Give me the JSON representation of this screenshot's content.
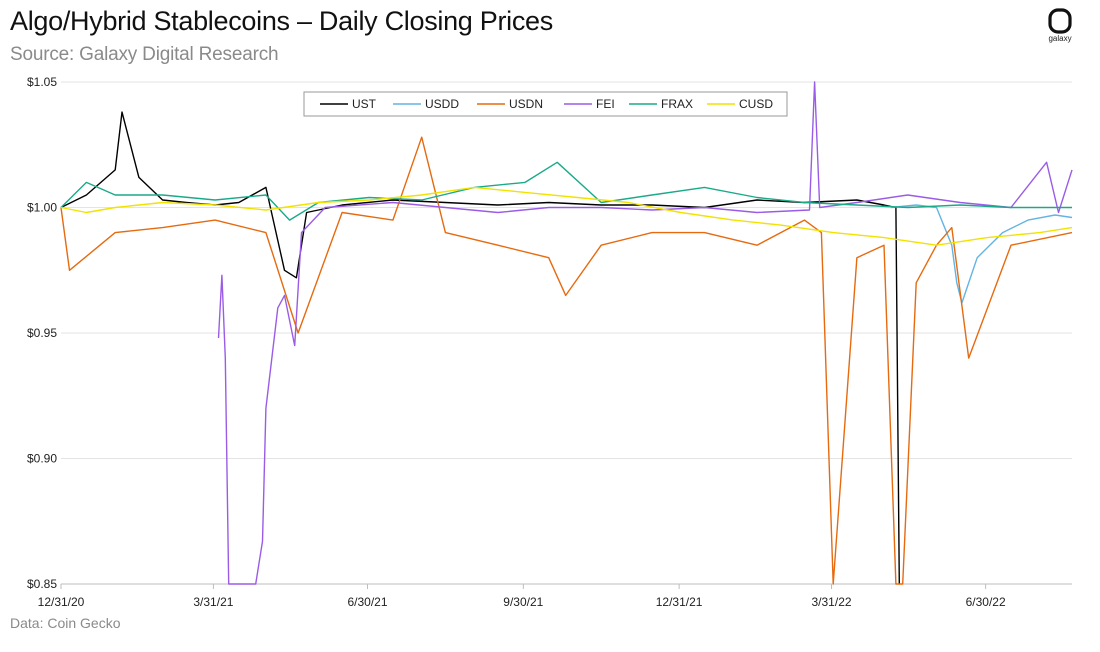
{
  "header": {
    "title": "Algo/Hybrid Stablecoins – Daily Closing Prices",
    "subtitle": "Source: Galaxy Digital Research",
    "logo_text": "galaxy"
  },
  "footer": {
    "note": "Data: Coin Gecko"
  },
  "chart_data": {
    "type": "line",
    "title": "Algo/Hybrid Stablecoins – Daily Closing Prices",
    "xlabel": "",
    "ylabel": "",
    "x_range": [
      "2020-12-31",
      "2022-08-20"
    ],
    "ylim": [
      0.85,
      1.05
    ],
    "y_ticks": [
      1.05,
      1.0,
      0.95,
      0.9,
      0.85
    ],
    "y_tick_labels": [
      "$1.05",
      "$1.00",
      "$0.95",
      "$0.90",
      "$0.85"
    ],
    "x_ticks": [
      "2020-12-31",
      "2021-03-31",
      "2021-06-30",
      "2021-09-30",
      "2021-12-31",
      "2022-03-31",
      "2022-06-30"
    ],
    "x_tick_labels": [
      "12/31/20",
      "3/31/21",
      "6/30/21",
      "9/30/21",
      "12/31/21",
      "3/31/22",
      "6/30/22"
    ],
    "grid": "horizontal",
    "legend_position": "top-center",
    "series": [
      {
        "name": "UST",
        "color": "#000000",
        "x": [
          "2020-12-31",
          "2021-01-15",
          "2021-02-01",
          "2021-02-05",
          "2021-02-15",
          "2021-03-01",
          "2021-03-15",
          "2021-04-01",
          "2021-04-15",
          "2021-05-01",
          "2021-05-12",
          "2021-05-19",
          "2021-05-25",
          "2021-06-15",
          "2021-07-15",
          "2021-08-15",
          "2021-09-15",
          "2021-10-15",
          "2021-11-15",
          "2021-12-15",
          "2022-01-15",
          "2022-02-15",
          "2022-03-15",
          "2022-04-15",
          "2022-05-01",
          "2022-05-08",
          "2022-05-10"
        ],
        "values": [
          1.0,
          1.005,
          1.015,
          1.038,
          1.012,
          1.003,
          1.002,
          1.001,
          1.002,
          1.008,
          0.975,
          0.972,
          0.998,
          1.001,
          1.003,
          1.002,
          1.001,
          1.002,
          1.001,
          1.001,
          1.0,
          1.003,
          1.002,
          1.003,
          1.001,
          1.0,
          0.85
        ]
      },
      {
        "name": "USDD",
        "color": "#63b4e2",
        "x": [
          "2022-05-05",
          "2022-05-20",
          "2022-06-01",
          "2022-06-10",
          "2022-06-13",
          "2022-06-16",
          "2022-06-25",
          "2022-07-10",
          "2022-07-25",
          "2022-08-10",
          "2022-08-20"
        ],
        "values": [
          1.0,
          1.001,
          1.0,
          0.985,
          0.97,
          0.962,
          0.98,
          0.99,
          0.995,
          0.997,
          0.996
        ]
      },
      {
        "name": "USDN",
        "color": "#e66a0f",
        "x": [
          "2020-12-31",
          "2021-01-05",
          "2021-02-01",
          "2021-03-01",
          "2021-04-01",
          "2021-05-01",
          "2021-05-20",
          "2021-06-15",
          "2021-07-15",
          "2021-08-01",
          "2021-08-15",
          "2021-09-15",
          "2021-10-15",
          "2021-10-25",
          "2021-11-15",
          "2021-12-15",
          "2022-01-15",
          "2022-02-15",
          "2022-03-15",
          "2022-03-25",
          "2022-04-01",
          "2022-04-15",
          "2022-05-01",
          "2022-05-08",
          "2022-05-12",
          "2022-05-20",
          "2022-06-01",
          "2022-06-10",
          "2022-06-20",
          "2022-07-15",
          "2022-08-20"
        ],
        "values": [
          1.0,
          0.975,
          0.99,
          0.992,
          0.995,
          0.99,
          0.95,
          0.998,
          0.995,
          1.028,
          0.99,
          0.985,
          0.98,
          0.965,
          0.985,
          0.99,
          0.99,
          0.985,
          0.995,
          0.99,
          0.85,
          0.98,
          0.985,
          0.85,
          0.85,
          0.97,
          0.985,
          0.992,
          0.94,
          0.985,
          0.99
        ]
      },
      {
        "name": "FEI",
        "color": "#9a5ce6",
        "x": [
          "2021-04-03",
          "2021-04-05",
          "2021-04-07",
          "2021-04-09",
          "2021-04-12",
          "2021-04-25",
          "2021-04-29",
          "2021-05-01",
          "2021-05-08",
          "2021-05-12",
          "2021-05-18",
          "2021-05-22",
          "2021-06-05",
          "2021-07-15",
          "2021-08-15",
          "2021-09-15",
          "2021-10-15",
          "2021-11-15",
          "2021-12-15",
          "2022-01-15",
          "2022-02-15",
          "2022-03-18",
          "2022-03-21",
          "2022-03-24",
          "2022-04-15",
          "2022-05-15",
          "2022-06-15",
          "2022-07-15",
          "2022-08-05",
          "2022-08-12",
          "2022-08-20"
        ],
        "values": [
          0.948,
          0.973,
          0.94,
          0.85,
          0.85,
          0.85,
          0.867,
          0.92,
          0.96,
          0.965,
          0.945,
          0.99,
          1.0,
          1.002,
          1.0,
          0.998,
          1.0,
          1.0,
          0.999,
          1.0,
          0.998,
          0.999,
          1.05,
          1.0,
          1.002,
          1.005,
          1.002,
          1.0,
          1.018,
          0.998,
          1.015
        ]
      },
      {
        "name": "FRAX",
        "color": "#1aaa8a",
        "x": [
          "2020-12-31",
          "2021-01-15",
          "2021-02-01",
          "2021-03-01",
          "2021-04-01",
          "2021-05-01",
          "2021-05-15",
          "2021-06-01",
          "2021-07-01",
          "2021-08-01",
          "2021-09-01",
          "2021-10-01",
          "2021-10-20",
          "2021-11-15",
          "2021-12-15",
          "2022-01-15",
          "2022-02-15",
          "2022-03-15",
          "2022-04-15",
          "2022-05-15",
          "2022-06-15",
          "2022-07-15",
          "2022-08-20"
        ],
        "values": [
          1.0,
          1.01,
          1.005,
          1.005,
          1.003,
          1.005,
          0.995,
          1.002,
          1.004,
          1.003,
          1.008,
          1.01,
          1.018,
          1.002,
          1.005,
          1.008,
          1.004,
          1.002,
          1.001,
          1.0,
          1.001,
          1.0,
          1.0
        ]
      },
      {
        "name": "CUSD",
        "color": "#f2e200",
        "x": [
          "2020-12-31",
          "2021-01-15",
          "2021-02-01",
          "2021-03-01",
          "2021-04-01",
          "2021-05-01",
          "2021-06-01",
          "2021-07-01",
          "2021-08-01",
          "2021-09-01",
          "2021-10-01",
          "2021-11-01",
          "2021-12-01",
          "2022-01-01",
          "2022-02-01",
          "2022-03-01",
          "2022-04-01",
          "2022-05-01",
          "2022-06-01",
          "2022-07-01",
          "2022-08-01",
          "2022-08-20"
        ],
        "values": [
          1.0,
          0.998,
          1.0,
          1.002,
          1.001,
          0.999,
          1.002,
          1.003,
          1.005,
          1.008,
          1.006,
          1.004,
          1.002,
          0.998,
          0.995,
          0.993,
          0.99,
          0.988,
          0.985,
          0.988,
          0.99,
          0.992
        ]
      }
    ]
  }
}
